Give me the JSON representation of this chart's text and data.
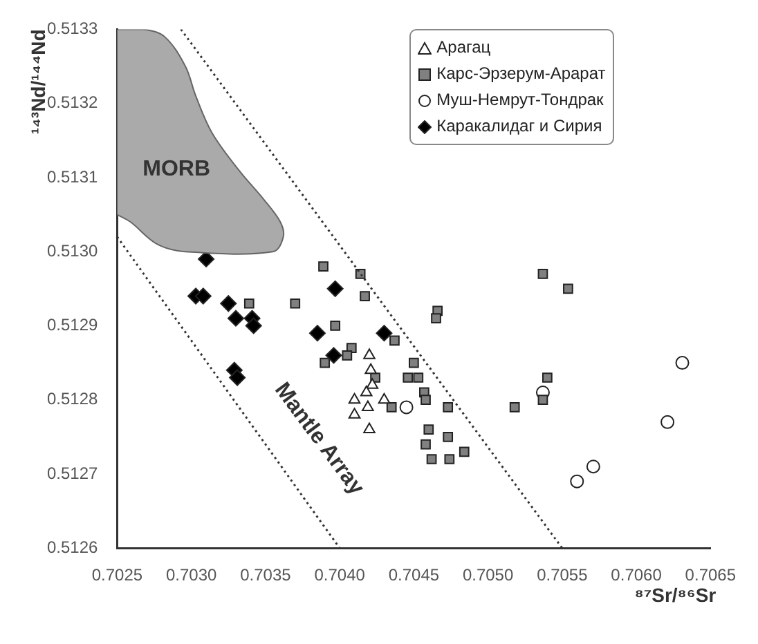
{
  "chart_data": {
    "type": "scatter",
    "xlabel": "⁸⁷Sr/⁸⁶Sr",
    "ylabel": "¹⁴³Nd/¹⁴⁴Nd",
    "xlim": [
      0.7025,
      0.7065
    ],
    "ylim": [
      0.5126,
      0.5133
    ],
    "xticks": [
      {
        "value": 0.7025,
        "label": "0.7025"
      },
      {
        "value": 0.703,
        "label": "0.7030"
      },
      {
        "value": 0.7035,
        "label": "0.7035"
      },
      {
        "value": 0.704,
        "label": "0.7040"
      },
      {
        "value": 0.7045,
        "label": "0.7045"
      },
      {
        "value": 0.705,
        "label": "0.7050"
      },
      {
        "value": 0.7055,
        "label": "0.7055"
      },
      {
        "value": 0.706,
        "label": "0.7060"
      },
      {
        "value": 0.7065,
        "label": "0.7065"
      }
    ],
    "yticks": [
      {
        "value": 0.5126,
        "label": "0.5126"
      },
      {
        "value": 0.5127,
        "label": "0.5127"
      },
      {
        "value": 0.5128,
        "label": "0.5128"
      },
      {
        "value": 0.5129,
        "label": "0.5129"
      },
      {
        "value": 0.513,
        "label": "0.5130"
      },
      {
        "value": 0.5131,
        "label": "0.5131"
      },
      {
        "value": 0.5132,
        "label": "0.5132"
      },
      {
        "value": 0.5133,
        "label": "0.5133"
      }
    ],
    "grid": false,
    "legend": "top right",
    "series": [
      {
        "type": "area",
        "color": "#aaaaaa",
        "x": [
          0.7025,
          0.70268,
          0.70282,
          0.70296,
          0.70303,
          0.70314,
          0.70332,
          0.70349,
          0.7036,
          0.70362,
          0.70355,
          0.70296,
          0.70277,
          0.70259,
          0.7025
        ],
        "values": [
          0.5133,
          0.5133,
          0.51329,
          0.51325,
          0.51321,
          0.51316,
          0.51311,
          0.51307,
          0.51304,
          0.51302,
          0.513,
          0.513,
          0.51301,
          0.51304,
          0.51305
        ]
      },
      {
        "type": "line",
        "color": "#333333",
        "line_style": "dotted",
        "marker": "none",
        "x": [
          0.70293,
          0.7055
        ],
        "values": [
          0.5133,
          0.5126
        ]
      },
      {
        "type": "line",
        "color": "#333333",
        "line_style": "dotted",
        "marker": "none",
        "x": [
          0.7025,
          0.704
        ],
        "values": [
          0.51302,
          0.5126
        ]
      },
      {
        "name": "Арагац",
        "marker": "triangle",
        "color": "#ffffff",
        "x": [
          0.7042,
          0.70421,
          0.70422,
          0.70418,
          0.7041,
          0.70419,
          0.7041,
          0.7042,
          0.7043
        ],
        "values": [
          0.51286,
          0.51284,
          0.51282,
          0.51281,
          0.5128,
          0.51279,
          0.51278,
          0.51276,
          0.5128
        ]
      },
      {
        "name": "Карс-Эрзерум-Арарат",
        "marker": "square",
        "color": "#808080",
        "x": [
          0.70339,
          0.7037,
          0.70389,
          0.70414,
          0.70417,
          0.70397,
          0.70408,
          0.70405,
          0.7039,
          0.70437,
          0.70537,
          0.70554,
          0.70466,
          0.70465,
          0.7045,
          0.70446,
          0.70453,
          0.70457,
          0.70458,
          0.70424,
          0.70435,
          0.70473,
          0.70518,
          0.7054,
          0.70537,
          0.7046,
          0.70473,
          0.70458,
          0.70462,
          0.70474,
          0.70484
        ],
        "values": [
          0.51293,
          0.51293,
          0.51298,
          0.51297,
          0.51294,
          0.5129,
          0.51287,
          0.51286,
          0.51285,
          0.51288,
          0.51297,
          0.51295,
          0.51292,
          0.51291,
          0.51285,
          0.51283,
          0.51283,
          0.51281,
          0.5128,
          0.51283,
          0.51279,
          0.51279,
          0.51279,
          0.51283,
          0.5128,
          0.51276,
          0.51275,
          0.51274,
          0.51272,
          0.51272,
          0.51273
        ]
      },
      {
        "name": "Муш-Немрут-Тондрак",
        "marker": "circle",
        "color": "#ffffff",
        "x": [
          0.70445,
          0.70537,
          0.70631,
          0.70621,
          0.70571,
          0.7056
        ],
        "values": [
          0.51279,
          0.51281,
          0.51285,
          0.51277,
          0.51271,
          0.51269
        ]
      },
      {
        "name": "Каракалидаг и Сирия",
        "marker": "diamond",
        "color": "#000000",
        "x": [
          0.7031,
          0.70303,
          0.70308,
          0.70325,
          0.7033,
          0.70341,
          0.70342,
          0.70329,
          0.70331,
          0.70385,
          0.70397,
          0.70396,
          0.7043
        ],
        "values": [
          0.51299,
          0.51294,
          0.51294,
          0.51293,
          0.51291,
          0.51291,
          0.5129,
          0.51284,
          0.51283,
          0.51289,
          0.51295,
          0.51286,
          0.51289
        ]
      }
    ],
    "annotations": [
      "MORB",
      "Mantle Array"
    ]
  }
}
